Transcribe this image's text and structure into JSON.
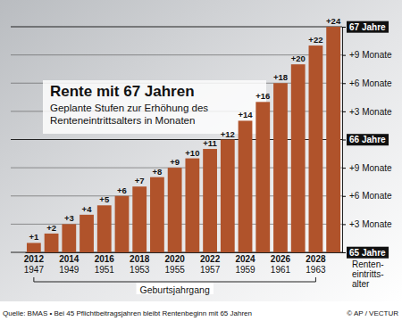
{
  "chart_data": {
    "type": "bar",
    "title": "Rente mit 67 Jahren",
    "subtitle": [
      "Geplante Stufen zur Erhöhung des",
      "Renteneintrittsalters in Monaten"
    ],
    "categories": [
      "2012",
      null,
      "2014",
      null,
      "2016",
      null,
      "2018",
      null,
      "2020",
      null,
      "2022",
      null,
      "2024",
      null,
      "2026",
      null,
      "2028",
      null
    ],
    "categories_2": [
      "1947",
      null,
      "1949",
      null,
      "1951",
      null,
      "1953",
      null,
      "1955",
      null,
      "1957",
      null,
      "1959",
      null,
      "1961",
      null,
      "1963",
      null
    ],
    "x_label": "Geburtsjahrgang",
    "y_label": [
      "Renten-",
      "eintritts-",
      "alter"
    ],
    "values": [
      1,
      2,
      3,
      4,
      5,
      6,
      7,
      8,
      9,
      10,
      11,
      12,
      14,
      16,
      18,
      20,
      22,
      24
    ],
    "value_labels": [
      "+1",
      "+2",
      "+3",
      "+4",
      "+5",
      "+6",
      "+7",
      "+8",
      "+9",
      "+10",
      "+11",
      "+12",
      "+14",
      "+16",
      "+18",
      "+20",
      "+22",
      "+24"
    ],
    "color": "#b0532b",
    "ylim": [
      0,
      24
    ],
    "yticks": [
      {
        "value": 0,
        "label": "65 Jahre"
      },
      {
        "value": 3,
        "label": "+3 Monate"
      },
      {
        "value": 6,
        "label": "+6 Monate"
      },
      {
        "value": 9,
        "label": "+9 Monate"
      },
      {
        "value": 12,
        "label": "66 Jahre"
      },
      {
        "value": 15,
        "label": "+3 Monate"
      },
      {
        "value": 18,
        "label": "+6 Monate"
      },
      {
        "value": 21,
        "label": "+9 Monate"
      },
      {
        "value": 24,
        "label": "67 Jahre"
      }
    ],
    "grid": true,
    "data_labels": true,
    "notes": [
      "Quelle: BMAS • Bei 45 Pflichtbeitragsjahren bleibt Rentenbeginn mit 65 Jahren",
      "© AP / VECTUR"
    ]
  }
}
